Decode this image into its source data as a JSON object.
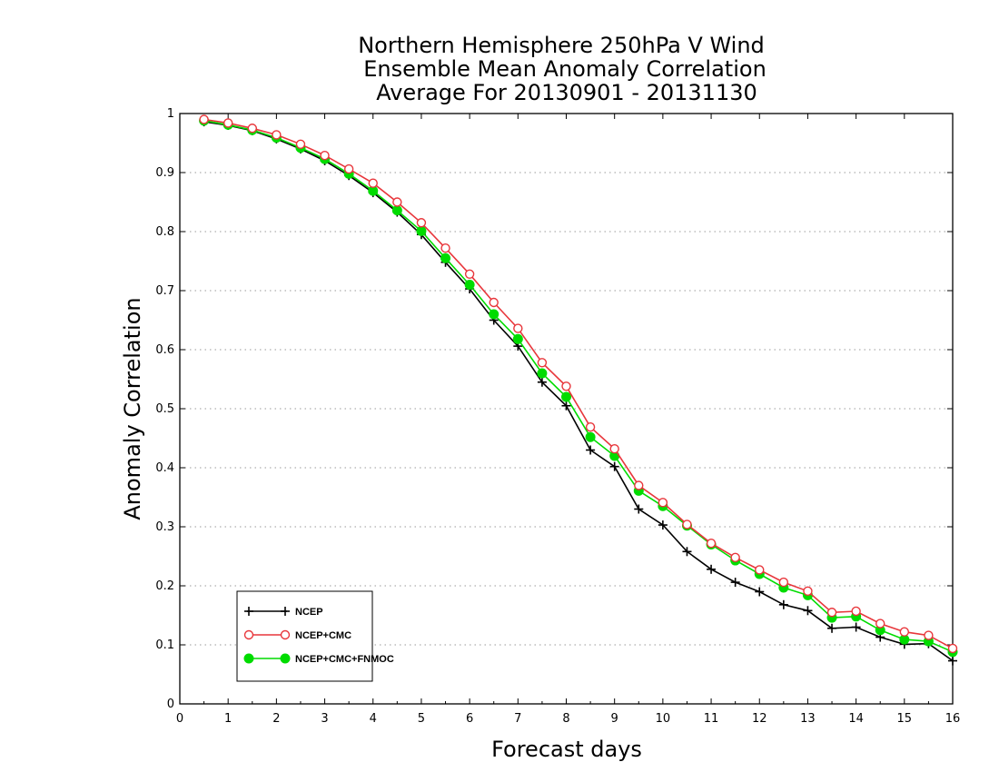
{
  "chart_data": {
    "type": "line",
    "title": [
      "Northern Hemisphere 250hPa V Wind",
      "Ensemble Mean Anomaly Correlation",
      "Average For 20130901 - 20131130"
    ],
    "xlabel": "Forecast days",
    "ylabel": "Anomaly Correlation",
    "xlim": [
      0,
      16
    ],
    "ylim": [
      0,
      1
    ],
    "x_ticks": [
      "0",
      "1",
      "2",
      "3",
      "4",
      "5",
      "6",
      "7",
      "8",
      "9",
      "10",
      "11",
      "12",
      "13",
      "14",
      "15",
      "16"
    ],
    "y_ticks": [
      "0",
      "0.1",
      "0.2",
      "0.3",
      "0.4",
      "0.5",
      "0.6",
      "0.7",
      "0.8",
      "0.9",
      "1"
    ],
    "grid": "horizontal-dotted",
    "legend_position": "bottom-left",
    "x": [
      0.5,
      1,
      1.5,
      2,
      2.5,
      3,
      3.5,
      4,
      4.5,
      5,
      5.5,
      6,
      6.5,
      7,
      7.5,
      8,
      8.5,
      9,
      9.5,
      10,
      10.5,
      11,
      11.5,
      12,
      12.5,
      13,
      13.5,
      14,
      14.5,
      15,
      15.5,
      16
    ],
    "series": [
      {
        "name": "NCEP",
        "color": "#000000",
        "marker": "plus",
        "values": [
          0.986,
          0.98,
          0.971,
          0.957,
          0.94,
          0.92,
          0.895,
          0.866,
          0.833,
          0.795,
          0.748,
          0.703,
          0.65,
          0.606,
          0.545,
          0.505,
          0.43,
          0.402,
          0.33,
          0.303,
          0.258,
          0.228,
          0.206,
          0.19,
          0.168,
          0.158,
          0.128,
          0.13,
          0.113,
          0.101,
          0.102,
          0.073
        ]
      },
      {
        "name": "NCEP+CMC",
        "color": "#e8363b",
        "marker": "open-circle",
        "values": [
          0.99,
          0.984,
          0.975,
          0.964,
          0.948,
          0.929,
          0.906,
          0.882,
          0.85,
          0.815,
          0.772,
          0.728,
          0.68,
          0.636,
          0.578,
          0.538,
          0.469,
          0.432,
          0.37,
          0.341,
          0.304,
          0.272,
          0.248,
          0.227,
          0.206,
          0.191,
          0.155,
          0.157,
          0.136,
          0.122,
          0.116,
          0.094
        ]
      },
      {
        "name": "NCEP+CMC+FNMOC",
        "color": "#00dc00",
        "marker": "filled-circle",
        "values": [
          0.988,
          0.981,
          0.972,
          0.959,
          0.942,
          0.923,
          0.898,
          0.869,
          0.836,
          0.801,
          0.755,
          0.71,
          0.66,
          0.618,
          0.56,
          0.52,
          0.452,
          0.42,
          0.361,
          0.335,
          0.302,
          0.27,
          0.243,
          0.22,
          0.197,
          0.184,
          0.146,
          0.148,
          0.125,
          0.109,
          0.106,
          0.088
        ]
      }
    ]
  }
}
